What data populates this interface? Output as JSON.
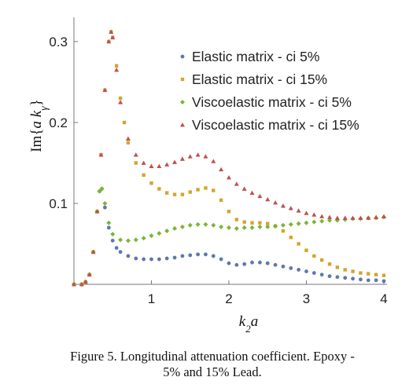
{
  "chart_data": {
    "type": "scatter",
    "title": "",
    "xlabel": "k2 a",
    "ylabel": "Im{a kγ}",
    "xlim": [
      0,
      4
    ],
    "ylim": [
      0,
      0.33
    ],
    "x_ticks": [
      1,
      2,
      3,
      4
    ],
    "y_ticks": [
      0.1,
      0.2,
      0.3
    ],
    "grid": false,
    "legend_position": "top-right",
    "series": [
      {
        "name": "Elastic matrix - ci 5%",
        "color": "#5b79ad",
        "marker": "circle",
        "points": [
          [
            0.0,
            0.0
          ],
          [
            0.1,
            0.0
          ],
          [
            0.15,
            0.003
          ],
          [
            0.2,
            0.012
          ],
          [
            0.25,
            0.04
          ],
          [
            0.3,
            0.09
          ],
          [
            0.33,
            0.115
          ],
          [
            0.36,
            0.118
          ],
          [
            0.4,
            0.095
          ],
          [
            0.45,
            0.07
          ],
          [
            0.5,
            0.054
          ],
          [
            0.55,
            0.045
          ],
          [
            0.6,
            0.04
          ],
          [
            0.7,
            0.035
          ],
          [
            0.8,
            0.032
          ],
          [
            0.9,
            0.031
          ],
          [
            1.0,
            0.031
          ],
          [
            1.1,
            0.031
          ],
          [
            1.2,
            0.032
          ],
          [
            1.3,
            0.033
          ],
          [
            1.4,
            0.035
          ],
          [
            1.5,
            0.036
          ],
          [
            1.6,
            0.037
          ],
          [
            1.7,
            0.037
          ],
          [
            1.8,
            0.035
          ],
          [
            1.9,
            0.031
          ],
          [
            2.0,
            0.026
          ],
          [
            2.1,
            0.024
          ],
          [
            2.2,
            0.025
          ],
          [
            2.3,
            0.027
          ],
          [
            2.4,
            0.027
          ],
          [
            2.5,
            0.026
          ],
          [
            2.6,
            0.024
          ],
          [
            2.7,
            0.022
          ],
          [
            2.8,
            0.02
          ],
          [
            2.9,
            0.018
          ],
          [
            3.0,
            0.016
          ],
          [
            3.1,
            0.014
          ],
          [
            3.2,
            0.012
          ],
          [
            3.3,
            0.01
          ],
          [
            3.4,
            0.009
          ],
          [
            3.5,
            0.008
          ],
          [
            3.6,
            0.007
          ],
          [
            3.7,
            0.006
          ],
          [
            3.8,
            0.005
          ],
          [
            3.9,
            0.005
          ],
          [
            4.0,
            0.004
          ]
        ]
      },
      {
        "name": "Elastic matrix - ci 15%",
        "color": "#d4a52c",
        "marker": "square",
        "points": [
          [
            0.0,
            0.0
          ],
          [
            0.1,
            0.0
          ],
          [
            0.15,
            0.003
          ],
          [
            0.2,
            0.012
          ],
          [
            0.25,
            0.04
          ],
          [
            0.3,
            0.09
          ],
          [
            0.35,
            0.16
          ],
          [
            0.4,
            0.24
          ],
          [
            0.45,
            0.3
          ],
          [
            0.48,
            0.312
          ],
          [
            0.5,
            0.305
          ],
          [
            0.55,
            0.27
          ],
          [
            0.6,
            0.23
          ],
          [
            0.65,
            0.2
          ],
          [
            0.7,
            0.175
          ],
          [
            0.8,
            0.15
          ],
          [
            0.9,
            0.135
          ],
          [
            1.0,
            0.125
          ],
          [
            1.1,
            0.118
          ],
          [
            1.2,
            0.113
          ],
          [
            1.3,
            0.111
          ],
          [
            1.4,
            0.111
          ],
          [
            1.5,
            0.114
          ],
          [
            1.6,
            0.117
          ],
          [
            1.7,
            0.119
          ],
          [
            1.8,
            0.116
          ],
          [
            1.9,
            0.104
          ],
          [
            2.0,
            0.09
          ],
          [
            2.1,
            0.08
          ],
          [
            2.2,
            0.077
          ],
          [
            2.3,
            0.076
          ],
          [
            2.4,
            0.076
          ],
          [
            2.5,
            0.075
          ],
          [
            2.6,
            0.072
          ],
          [
            2.7,
            0.066
          ],
          [
            2.8,
            0.058
          ],
          [
            2.9,
            0.05
          ],
          [
            3.0,
            0.042
          ],
          [
            3.1,
            0.035
          ],
          [
            3.2,
            0.03
          ],
          [
            3.3,
            0.025
          ],
          [
            3.4,
            0.021
          ],
          [
            3.5,
            0.018
          ],
          [
            3.6,
            0.016
          ],
          [
            3.7,
            0.014
          ],
          [
            3.8,
            0.013
          ],
          [
            3.9,
            0.012
          ],
          [
            4.0,
            0.011
          ]
        ]
      },
      {
        "name": "Viscoelastic matrix - ci 5%",
        "color": "#7ab636",
        "marker": "diamond",
        "points": [
          [
            0.0,
            0.0
          ],
          [
            0.1,
            0.0
          ],
          [
            0.15,
            0.003
          ],
          [
            0.2,
            0.012
          ],
          [
            0.25,
            0.04
          ],
          [
            0.3,
            0.09
          ],
          [
            0.33,
            0.115
          ],
          [
            0.36,
            0.118
          ],
          [
            0.4,
            0.1
          ],
          [
            0.45,
            0.076
          ],
          [
            0.5,
            0.062
          ],
          [
            0.6,
            0.055
          ],
          [
            0.7,
            0.054
          ],
          [
            0.8,
            0.055
          ],
          [
            0.9,
            0.057
          ],
          [
            1.0,
            0.06
          ],
          [
            1.1,
            0.063
          ],
          [
            1.2,
            0.066
          ],
          [
            1.3,
            0.069
          ],
          [
            1.4,
            0.071
          ],
          [
            1.5,
            0.073
          ],
          [
            1.6,
            0.074
          ],
          [
            1.7,
            0.074
          ],
          [
            1.8,
            0.073
          ],
          [
            1.9,
            0.071
          ],
          [
            2.0,
            0.07
          ],
          [
            2.1,
            0.069
          ],
          [
            2.2,
            0.07
          ],
          [
            2.3,
            0.07
          ],
          [
            2.4,
            0.071
          ],
          [
            2.5,
            0.071
          ],
          [
            2.6,
            0.072
          ],
          [
            2.7,
            0.073
          ],
          [
            2.8,
            0.074
          ],
          [
            2.9,
            0.075
          ],
          [
            3.0,
            0.076
          ],
          [
            3.1,
            0.077
          ],
          [
            3.2,
            0.078
          ],
          [
            3.3,
            0.079
          ],
          [
            3.4,
            0.079
          ],
          [
            3.5,
            0.08
          ],
          [
            3.6,
            0.081
          ],
          [
            3.7,
            0.081
          ],
          [
            3.8,
            0.082
          ],
          [
            3.9,
            0.082
          ],
          [
            4.0,
            0.083
          ]
        ]
      },
      {
        "name": "Viscoelastic matrix - ci 15%",
        "color": "#c0504d",
        "marker": "triangle",
        "points": [
          [
            0.0,
            0.0
          ],
          [
            0.1,
            0.0
          ],
          [
            0.15,
            0.003
          ],
          [
            0.2,
            0.012
          ],
          [
            0.25,
            0.04
          ],
          [
            0.3,
            0.09
          ],
          [
            0.35,
            0.16
          ],
          [
            0.4,
            0.24
          ],
          [
            0.45,
            0.3
          ],
          [
            0.48,
            0.312
          ],
          [
            0.5,
            0.305
          ],
          [
            0.55,
            0.265
          ],
          [
            0.6,
            0.225
          ],
          [
            0.7,
            0.18
          ],
          [
            0.8,
            0.16
          ],
          [
            0.9,
            0.15
          ],
          [
            1.0,
            0.146
          ],
          [
            1.1,
            0.146
          ],
          [
            1.2,
            0.148
          ],
          [
            1.3,
            0.151
          ],
          [
            1.4,
            0.155
          ],
          [
            1.5,
            0.158
          ],
          [
            1.6,
            0.16
          ],
          [
            1.7,
            0.158
          ],
          [
            1.8,
            0.152
          ],
          [
            1.9,
            0.142
          ],
          [
            2.0,
            0.132
          ],
          [
            2.1,
            0.124
          ],
          [
            2.2,
            0.118
          ],
          [
            2.3,
            0.113
          ],
          [
            2.4,
            0.109
          ],
          [
            2.5,
            0.105
          ],
          [
            2.6,
            0.101
          ],
          [
            2.7,
            0.097
          ],
          [
            2.8,
            0.094
          ],
          [
            2.9,
            0.091
          ],
          [
            3.0,
            0.088
          ],
          [
            3.1,
            0.086
          ],
          [
            3.2,
            0.084
          ],
          [
            3.3,
            0.083
          ],
          [
            3.4,
            0.082
          ],
          [
            3.5,
            0.082
          ],
          [
            3.6,
            0.082
          ],
          [
            3.7,
            0.082
          ],
          [
            3.8,
            0.082
          ],
          [
            3.9,
            0.083
          ],
          [
            4.0,
            0.084
          ]
        ]
      }
    ]
  },
  "caption": {
    "line1": "Figure 5. Longitudinal attenuation coefficient. Epoxy -",
    "line2": "5% and 15% Lead."
  }
}
